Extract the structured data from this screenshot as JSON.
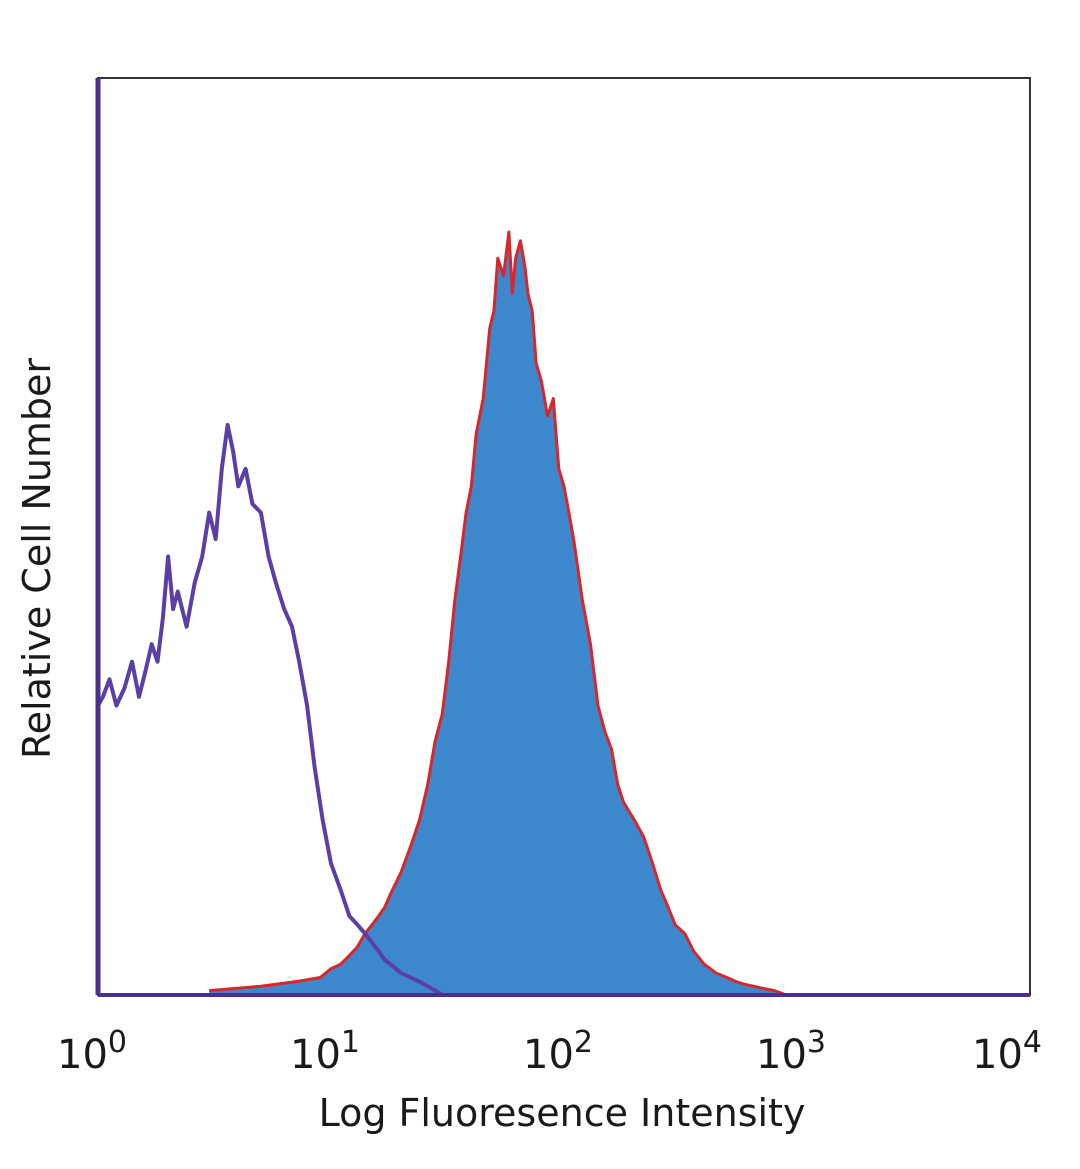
{
  "chart_data": {
    "type": "area",
    "title": "",
    "xlabel": "Log Fluoresence Intensity",
    "ylabel": "Relative Cell Number",
    "x_scale": "log",
    "xlim": [
      1,
      10000
    ],
    "ylim": [
      0,
      1
    ],
    "grid": false,
    "legend": "none",
    "x_ticks": [
      {
        "base": "10",
        "exp": "0",
        "value": 1
      },
      {
        "base": "10",
        "exp": "1",
        "value": 10
      },
      {
        "base": "10",
        "exp": "2",
        "value": 100
      },
      {
        "base": "10",
        "exp": "3",
        "value": 1000
      },
      {
        "base": "10",
        "exp": "4",
        "value": 10000
      }
    ],
    "series": [
      {
        "style": "outline",
        "color": "#5b3fa6",
        "x": [
          1,
          1.05,
          1.12,
          1.2,
          1.3,
          1.4,
          1.5,
          1.6,
          1.7,
          1.8,
          1.9,
          2.0,
          2.1,
          2.2,
          2.4,
          2.6,
          2.8,
          3.0,
          3.2,
          3.4,
          3.6,
          3.8,
          4.0,
          4.3,
          4.6,
          5.0,
          5.4,
          5.8,
          6.3,
          6.8,
          7.3,
          7.9,
          8.5,
          9.2,
          10,
          11,
          12,
          13,
          14,
          15,
          16,
          17,
          18,
          19,
          20,
          22,
          24,
          26,
          28,
          30
        ],
        "values": [
          0.33,
          0.34,
          0.36,
          0.33,
          0.35,
          0.38,
          0.34,
          0.37,
          0.4,
          0.38,
          0.43,
          0.5,
          0.44,
          0.46,
          0.42,
          0.47,
          0.5,
          0.55,
          0.52,
          0.6,
          0.65,
          0.62,
          0.58,
          0.6,
          0.56,
          0.55,
          0.5,
          0.47,
          0.44,
          0.42,
          0.38,
          0.33,
          0.26,
          0.2,
          0.15,
          0.12,
          0.09,
          0.08,
          0.07,
          0.06,
          0.05,
          0.04,
          0.035,
          0.03,
          0.025,
          0.02,
          0.015,
          0.01,
          0.005,
          0.0
        ]
      },
      {
        "style": "filled",
        "color": "#3d88cc",
        "edge_color": "#d9262b",
        "x": [
          3,
          5,
          7,
          9,
          10,
          11,
          12,
          13,
          14,
          15,
          16,
          17,
          18,
          20,
          22,
          24,
          26,
          28,
          30,
          32,
          34,
          36,
          38,
          40,
          42,
          45,
          48,
          50,
          52,
          55,
          58,
          60,
          62,
          65,
          68,
          70,
          73,
          76,
          80,
          85,
          90,
          95,
          100,
          105,
          110,
          120,
          130,
          140,
          150,
          160,
          170,
          180,
          200,
          220,
          240,
          260,
          280,
          300,
          330,
          360,
          400,
          450,
          500,
          550,
          600,
          650,
          700,
          800,
          900
        ],
        "values": [
          0.005,
          0.01,
          0.015,
          0.02,
          0.03,
          0.035,
          0.045,
          0.055,
          0.07,
          0.08,
          0.09,
          0.1,
          0.115,
          0.14,
          0.17,
          0.2,
          0.24,
          0.29,
          0.32,
          0.38,
          0.45,
          0.5,
          0.55,
          0.58,
          0.64,
          0.68,
          0.76,
          0.78,
          0.84,
          0.82,
          0.87,
          0.8,
          0.84,
          0.86,
          0.83,
          0.8,
          0.78,
          0.72,
          0.7,
          0.66,
          0.68,
          0.6,
          0.58,
          0.55,
          0.52,
          0.45,
          0.4,
          0.33,
          0.3,
          0.28,
          0.24,
          0.22,
          0.2,
          0.18,
          0.15,
          0.12,
          0.1,
          0.08,
          0.07,
          0.05,
          0.035,
          0.025,
          0.02,
          0.015,
          0.012,
          0.01,
          0.008,
          0.005,
          0.0
        ]
      }
    ]
  }
}
